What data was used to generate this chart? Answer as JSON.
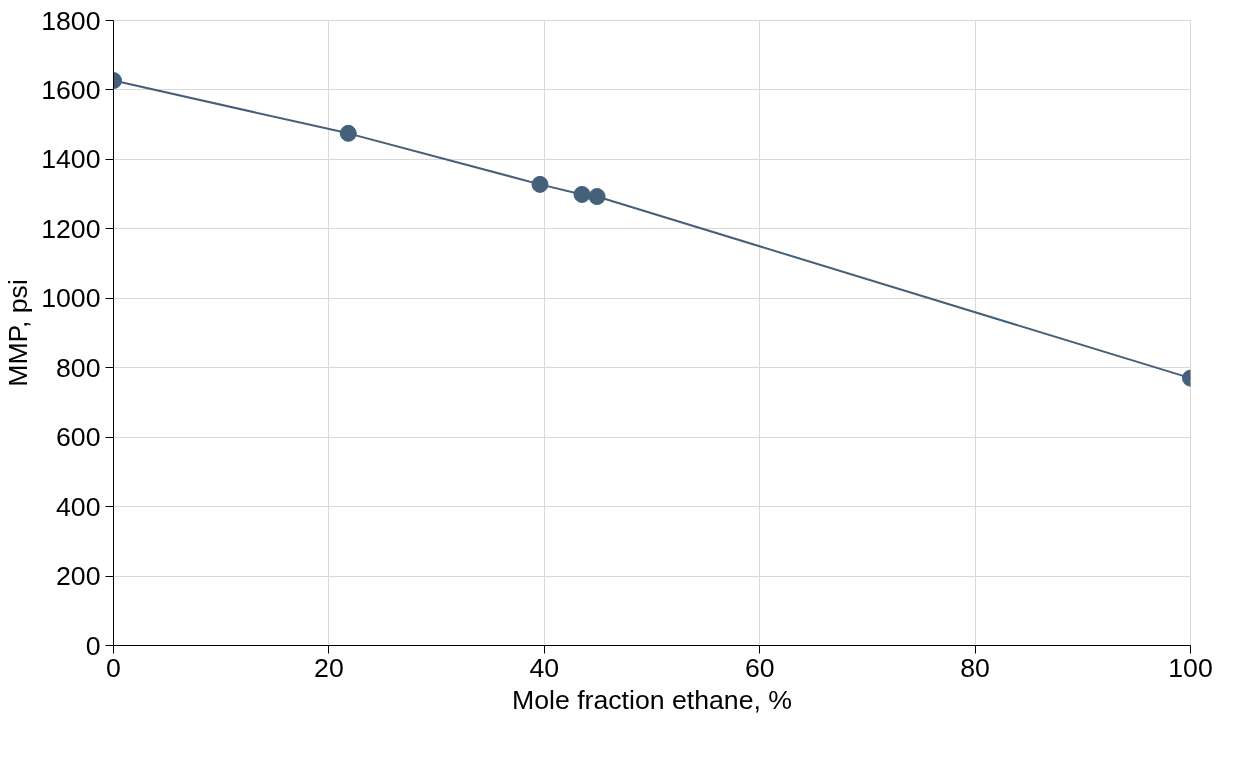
{
  "chart_data": {
    "type": "line",
    "xlabel": "Mole fraction ethane, %",
    "ylabel": "MMP, psi",
    "series": [
      {
        "color": "#44607a",
        "x": [
          0,
          21.8,
          39.6,
          43.5,
          44.9,
          100
        ],
        "values": [
          1627,
          1475,
          1328,
          1299,
          1293,
          770
        ]
      }
    ],
    "xlim": [
      0,
      100
    ],
    "xticks": [
      0,
      20,
      40,
      60,
      80,
      100
    ],
    "ylim": [
      0,
      1800
    ],
    "yticks": [
      0,
      200,
      400,
      600,
      800,
      1000,
      1200,
      1400,
      1600,
      1800
    ],
    "grid": true,
    "marker": "circle",
    "line_style": "solid"
  }
}
